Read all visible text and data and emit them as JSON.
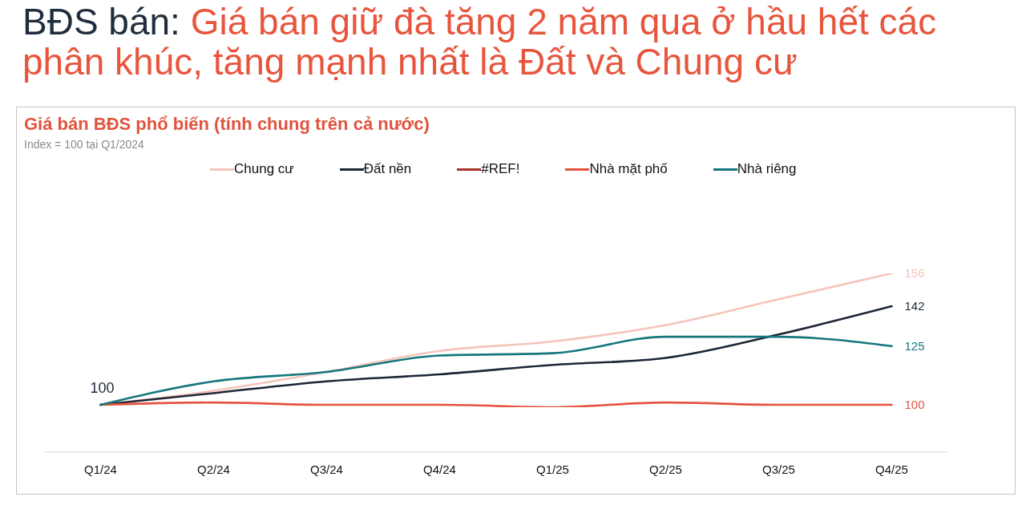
{
  "chart_data": {
    "type": "line",
    "title": "Giá bán BĐS phổ biến (tính chung trên cả nước)",
    "subtitle": "Index = 100 tại Q1/2024",
    "annotations": [
      "BĐS bán: Giá bán giữ đà tăng 2 năm qua ở hầu hết các phân khúc, tăng mạnh nhất là Đất và Chung cư"
    ],
    "categories": [
      "Q1/24",
      "Q2/24",
      "Q3/24",
      "Q4/24",
      "Q1/25",
      "Q2/25",
      "Q3/25",
      "Q4/25"
    ],
    "series": [
      {
        "name": "Chung cư",
        "color": "#f6c4bb",
        "values": [
          100,
          106,
          114,
          123,
          127,
          134,
          145,
          156
        ],
        "value_labels": [
          null,
          null,
          null,
          null,
          null,
          null,
          null,
          "156"
        ]
      },
      {
        "name": "Đất nền",
        "color": "#1c2636",
        "values": [
          100,
          105,
          110,
          113,
          117,
          120,
          130,
          142
        ],
        "value_labels": [
          "100",
          null,
          null,
          null,
          null,
          null,
          null,
          "142"
        ]
      },
      {
        "name": "#REF!",
        "color": "#a93226",
        "values": [
          null,
          null,
          null,
          null,
          null,
          null,
          null,
          null
        ]
      },
      {
        "name": "Nhà mặt phố",
        "color": "#e5533d",
        "values": [
          100,
          101,
          100,
          100,
          99,
          101,
          100,
          100
        ],
        "value_labels": [
          null,
          null,
          null,
          null,
          null,
          null,
          null,
          "100"
        ]
      },
      {
        "name": "Nhà riêng",
        "color": "#16767d",
        "values": [
          100,
          110,
          114,
          121,
          122,
          129,
          129,
          125
        ],
        "value_labels": [
          null,
          null,
          null,
          null,
          null,
          null,
          null,
          "125"
        ]
      }
    ],
    "tick_labels": "x",
    "legend": "top",
    "marker": "none"
  }
}
